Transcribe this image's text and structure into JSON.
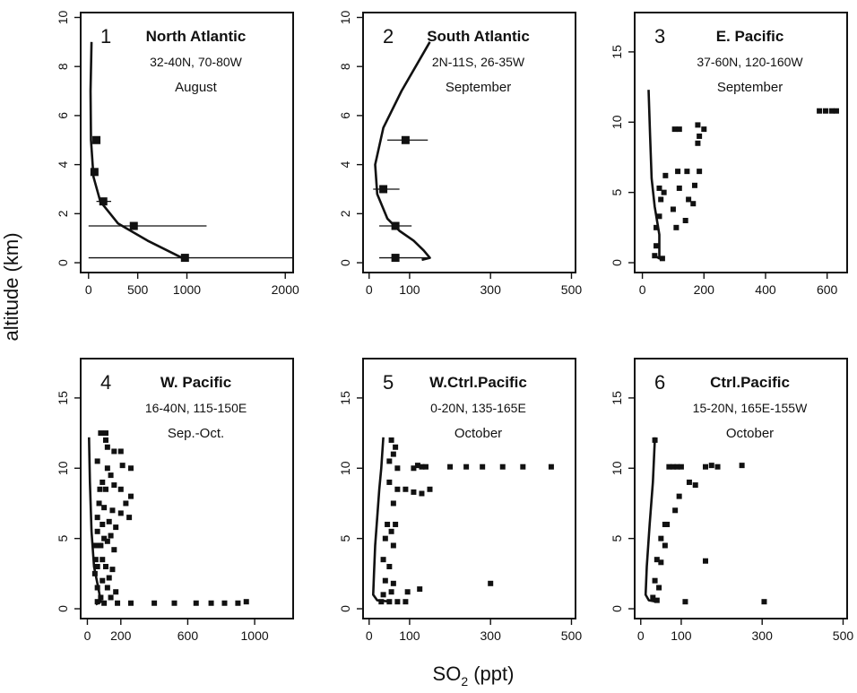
{
  "figure": {
    "ylabel": "altitude (km)",
    "xlabel_main": "SO",
    "xlabel_sub": "2",
    "xlabel_unit": " (ppt)"
  },
  "chart_data": [
    {
      "type": "scatter",
      "panel_number": "1",
      "title": "North Atlantic",
      "subtitle": "32-40N, 70-80W",
      "month": "August",
      "xlim": [
        -80,
        2080
      ],
      "ylim": [
        -0.4,
        10.2
      ],
      "xticks": [
        0,
        500,
        1000,
        2000
      ],
      "yticks": [
        0,
        2,
        4,
        6,
        8,
        10
      ],
      "curve": [
        [
          30,
          9.0
        ],
        [
          20,
          7.0
        ],
        [
          25,
          5.0
        ],
        [
          50,
          3.5
        ],
        [
          120,
          2.5
        ],
        [
          300,
          1.6
        ],
        [
          600,
          0.9
        ],
        [
          950,
          0.2
        ]
      ],
      "points": [
        {
          "x": 80,
          "y": 5.0,
          "xerr": [
            80,
            80
          ]
        },
        {
          "x": 60,
          "y": 3.7,
          "xerr": [
            60,
            60
          ]
        },
        {
          "x": 150,
          "y": 2.5,
          "xerr": [
            80,
            230
          ]
        },
        {
          "x": 460,
          "y": 1.5,
          "xerr": [
            0,
            1200
          ]
        },
        {
          "x": 980,
          "y": 0.2,
          "xerr": [
            0,
            2080
          ]
        }
      ]
    },
    {
      "type": "scatter",
      "panel_number": "2",
      "title": "South Atlantic",
      "subtitle": "2N-11S, 26-35W",
      "month": "September",
      "xlim": [
        -15,
        510
      ],
      "ylim": [
        -0.4,
        10.2
      ],
      "xticks": [
        0,
        100,
        300,
        500
      ],
      "yticks": [
        0,
        2,
        4,
        6,
        8,
        10
      ],
      "curve": [
        [
          150,
          9.0
        ],
        [
          80,
          7.0
        ],
        [
          35,
          5.5
        ],
        [
          15,
          4.0
        ],
        [
          20,
          2.8
        ],
        [
          45,
          1.8
        ],
        [
          75,
          1.3
        ],
        [
          110,
          0.9
        ],
        [
          135,
          0.5
        ],
        [
          150,
          0.2
        ],
        [
          130,
          0.12
        ]
      ],
      "points": [
        {
          "x": 90,
          "y": 5.0,
          "xerr": [
            45,
            145
          ]
        },
        {
          "x": 35,
          "y": 3.0,
          "xerr": [
            10,
            75
          ]
        },
        {
          "x": 65,
          "y": 1.5,
          "xerr": [
            25,
            105
          ]
        },
        {
          "x": 65,
          "y": 0.2,
          "xerr": [
            25,
            145
          ]
        }
      ]
    },
    {
      "type": "scatter",
      "panel_number": "3",
      "title": "E. Pacific",
      "subtitle": "37-60N, 120-160W",
      "month": "September",
      "xlim": [
        -25,
        665
      ],
      "ylim": [
        -0.7,
        17.8
      ],
      "xticks": [
        0,
        200,
        400,
        600
      ],
      "yticks": [
        0,
        5,
        10,
        15
      ],
      "curve": [
        [
          20,
          12.3
        ],
        [
          25,
          9.0
        ],
        [
          30,
          6.0
        ],
        [
          40,
          4.0
        ],
        [
          55,
          2.0
        ],
        [
          55,
          0.3
        ],
        [
          40,
          0.5
        ]
      ],
      "points": [
        {
          "x": 40,
          "y": 0.5
        },
        {
          "x": 45,
          "y": 1.2
        },
        {
          "x": 45,
          "y": 2.5
        },
        {
          "x": 55,
          "y": 3.3
        },
        {
          "x": 65,
          "y": 0.3
        },
        {
          "x": 55,
          "y": 5.3
        },
        {
          "x": 60,
          "y": 4.5
        },
        {
          "x": 70,
          "y": 5.0
        },
        {
          "x": 75,
          "y": 6.2
        },
        {
          "x": 110,
          "y": 2.5
        },
        {
          "x": 100,
          "y": 3.8
        },
        {
          "x": 120,
          "y": 5.3
        },
        {
          "x": 115,
          "y": 6.5
        },
        {
          "x": 105,
          "y": 9.5
        },
        {
          "x": 140,
          "y": 3.0
        },
        {
          "x": 150,
          "y": 4.5
        },
        {
          "x": 145,
          "y": 6.5
        },
        {
          "x": 165,
          "y": 4.2
        },
        {
          "x": 170,
          "y": 5.5
        },
        {
          "x": 185,
          "y": 6.5
        },
        {
          "x": 180,
          "y": 8.5
        },
        {
          "x": 185,
          "y": 9.0
        },
        {
          "x": 180,
          "y": 9.8
        },
        {
          "x": 200,
          "y": 9.5
        },
        {
          "x": 120,
          "y": 9.5
        },
        {
          "x": 575,
          "y": 10.8
        },
        {
          "x": 595,
          "y": 10.8
        },
        {
          "x": 615,
          "y": 10.8
        },
        {
          "x": 630,
          "y": 10.8
        }
      ]
    },
    {
      "type": "scatter",
      "panel_number": "4",
      "title": "W. Pacific",
      "subtitle": "16-40N, 115-150E",
      "month": "Sep.-Oct.",
      "xlim": [
        -40,
        1230
      ],
      "ylim": [
        -0.7,
        17.8
      ],
      "xticks": [
        0,
        200,
        600,
        1000
      ],
      "yticks": [
        0,
        5,
        10,
        15
      ],
      "curve": [
        [
          10,
          12.2
        ],
        [
          15,
          9.0
        ],
        [
          25,
          5.5
        ],
        [
          40,
          3.0
        ],
        [
          70,
          1.2
        ],
        [
          80,
          0.5
        ],
        [
          50,
          0.3
        ]
      ],
      "points": [
        {
          "x": 80,
          "y": 12.5
        },
        {
          "x": 110,
          "y": 12.0
        },
        {
          "x": 120,
          "y": 11.5
        },
        {
          "x": 160,
          "y": 11.2
        },
        {
          "x": 200,
          "y": 11.2
        },
        {
          "x": 110,
          "y": 12.5
        },
        {
          "x": 210,
          "y": 10.2
        },
        {
          "x": 260,
          "y": 10.0
        },
        {
          "x": 60,
          "y": 10.5
        },
        {
          "x": 120,
          "y": 10.0
        },
        {
          "x": 90,
          "y": 9.0
        },
        {
          "x": 140,
          "y": 9.5
        },
        {
          "x": 75,
          "y": 8.5
        },
        {
          "x": 110,
          "y": 8.5
        },
        {
          "x": 160,
          "y": 8.8
        },
        {
          "x": 200,
          "y": 8.5
        },
        {
          "x": 260,
          "y": 8.0
        },
        {
          "x": 230,
          "y": 7.5
        },
        {
          "x": 70,
          "y": 7.5
        },
        {
          "x": 100,
          "y": 7.2
        },
        {
          "x": 150,
          "y": 7.0
        },
        {
          "x": 200,
          "y": 6.8
        },
        {
          "x": 250,
          "y": 6.5
        },
        {
          "x": 60,
          "y": 6.5
        },
        {
          "x": 90,
          "y": 6.0
        },
        {
          "x": 130,
          "y": 6.2
        },
        {
          "x": 170,
          "y": 5.8
        },
        {
          "x": 60,
          "y": 5.5
        },
        {
          "x": 100,
          "y": 5.0
        },
        {
          "x": 140,
          "y": 5.2
        },
        {
          "x": 50,
          "y": 4.5
        },
        {
          "x": 80,
          "y": 4.5
        },
        {
          "x": 120,
          "y": 4.8
        },
        {
          "x": 160,
          "y": 4.2
        },
        {
          "x": 50,
          "y": 3.5
        },
        {
          "x": 90,
          "y": 3.5
        },
        {
          "x": 60,
          "y": 3.0
        },
        {
          "x": 110,
          "y": 3.0
        },
        {
          "x": 150,
          "y": 2.8
        },
        {
          "x": 45,
          "y": 2.5
        },
        {
          "x": 90,
          "y": 2.0
        },
        {
          "x": 130,
          "y": 2.2
        },
        {
          "x": 60,
          "y": 1.5
        },
        {
          "x": 120,
          "y": 1.5
        },
        {
          "x": 170,
          "y": 1.2
        },
        {
          "x": 80,
          "y": 0.8
        },
        {
          "x": 140,
          "y": 0.8
        },
        {
          "x": 60,
          "y": 0.5
        },
        {
          "x": 100,
          "y": 0.4
        },
        {
          "x": 180,
          "y": 0.4
        },
        {
          "x": 260,
          "y": 0.4
        },
        {
          "x": 400,
          "y": 0.4
        },
        {
          "x": 520,
          "y": 0.4
        },
        {
          "x": 650,
          "y": 0.4
        },
        {
          "x": 740,
          "y": 0.4
        },
        {
          "x": 820,
          "y": 0.4
        },
        {
          "x": 900,
          "y": 0.4
        },
        {
          "x": 950,
          "y": 0.5
        }
      ]
    },
    {
      "type": "scatter",
      "panel_number": "5",
      "title": "W.Ctrl.Pacific",
      "subtitle": "0-20N, 135-165E",
      "month": "October",
      "xlim": [
        -15,
        510
      ],
      "ylim": [
        -0.7,
        17.8
      ],
      "xticks": [
        0,
        100,
        300,
        500
      ],
      "yticks": [
        0,
        5,
        10,
        15
      ],
      "curve": [
        [
          35,
          12.2
        ],
        [
          30,
          10.0
        ],
        [
          25,
          8.5
        ],
        [
          20,
          6.5
        ],
        [
          15,
          4.5
        ],
        [
          12,
          2.5
        ],
        [
          10,
          1.0
        ],
        [
          20,
          0.6
        ],
        [
          55,
          0.5
        ]
      ],
      "points": [
        {
          "x": 55,
          "y": 12.0
        },
        {
          "x": 65,
          "y": 11.5
        },
        {
          "x": 60,
          "y": 11.0
        },
        {
          "x": 50,
          "y": 10.5
        },
        {
          "x": 70,
          "y": 10.0
        },
        {
          "x": 110,
          "y": 10.0
        },
        {
          "x": 120,
          "y": 10.2
        },
        {
          "x": 130,
          "y": 10.1
        },
        {
          "x": 140,
          "y": 10.1
        },
        {
          "x": 200,
          "y": 10.1
        },
        {
          "x": 240,
          "y": 10.1
        },
        {
          "x": 280,
          "y": 10.1
        },
        {
          "x": 330,
          "y": 10.1
        },
        {
          "x": 380,
          "y": 10.1
        },
        {
          "x": 450,
          "y": 10.1
        },
        {
          "x": 50,
          "y": 9.0
        },
        {
          "x": 70,
          "y": 8.5
        },
        {
          "x": 90,
          "y": 8.5
        },
        {
          "x": 110,
          "y": 8.3
        },
        {
          "x": 130,
          "y": 8.2
        },
        {
          "x": 150,
          "y": 8.5
        },
        {
          "x": 60,
          "y": 7.5
        },
        {
          "x": 45,
          "y": 6.0
        },
        {
          "x": 55,
          "y": 5.5
        },
        {
          "x": 65,
          "y": 6.0
        },
        {
          "x": 40,
          "y": 5.0
        },
        {
          "x": 60,
          "y": 4.5
        },
        {
          "x": 35,
          "y": 3.5
        },
        {
          "x": 50,
          "y": 3.0
        },
        {
          "x": 40,
          "y": 2.0
        },
        {
          "x": 60,
          "y": 1.8
        },
        {
          "x": 35,
          "y": 1.0
        },
        {
          "x": 55,
          "y": 1.2
        },
        {
          "x": 95,
          "y": 1.2
        },
        {
          "x": 125,
          "y": 1.4
        },
        {
          "x": 300,
          "y": 1.8
        },
        {
          "x": 30,
          "y": 0.5
        },
        {
          "x": 50,
          "y": 0.5
        },
        {
          "x": 70,
          "y": 0.5
        },
        {
          "x": 90,
          "y": 0.5
        }
      ]
    },
    {
      "type": "scatter",
      "panel_number": "6",
      "title": "Ctrl.Pacific",
      "subtitle": "15-20N, 165E-155W",
      "month": "October",
      "xlim": [
        -15,
        510
      ],
      "ylim": [
        -0.7,
        17.8
      ],
      "xticks": [
        0,
        100,
        300,
        500
      ],
      "yticks": [
        0,
        5,
        10,
        15
      ],
      "curve": [
        [
          35,
          12.2
        ],
        [
          30,
          9.0
        ],
        [
          22,
          6.0
        ],
        [
          15,
          3.0
        ],
        [
          12,
          1.0
        ],
        [
          20,
          0.6
        ],
        [
          40,
          0.5
        ]
      ],
      "points": [
        {
          "x": 35,
          "y": 12.0
        },
        {
          "x": 70,
          "y": 10.1
        },
        {
          "x": 80,
          "y": 10.1
        },
        {
          "x": 90,
          "y": 10.1
        },
        {
          "x": 100,
          "y": 10.1
        },
        {
          "x": 160,
          "y": 10.1
        },
        {
          "x": 175,
          "y": 10.2
        },
        {
          "x": 190,
          "y": 10.1
        },
        {
          "x": 250,
          "y": 10.2
        },
        {
          "x": 120,
          "y": 9.0
        },
        {
          "x": 135,
          "y": 8.8
        },
        {
          "x": 95,
          "y": 8.0
        },
        {
          "x": 85,
          "y": 7.0
        },
        {
          "x": 60,
          "y": 6.0
        },
        {
          "x": 65,
          "y": 6.0
        },
        {
          "x": 50,
          "y": 5.0
        },
        {
          "x": 60,
          "y": 4.5
        },
        {
          "x": 40,
          "y": 3.5
        },
        {
          "x": 50,
          "y": 3.3
        },
        {
          "x": 160,
          "y": 3.4
        },
        {
          "x": 35,
          "y": 2.0
        },
        {
          "x": 45,
          "y": 1.5
        },
        {
          "x": 30,
          "y": 0.8
        },
        {
          "x": 40,
          "y": 0.6
        },
        {
          "x": 110,
          "y": 0.5
        },
        {
          "x": 305,
          "y": 0.5
        }
      ]
    }
  ]
}
